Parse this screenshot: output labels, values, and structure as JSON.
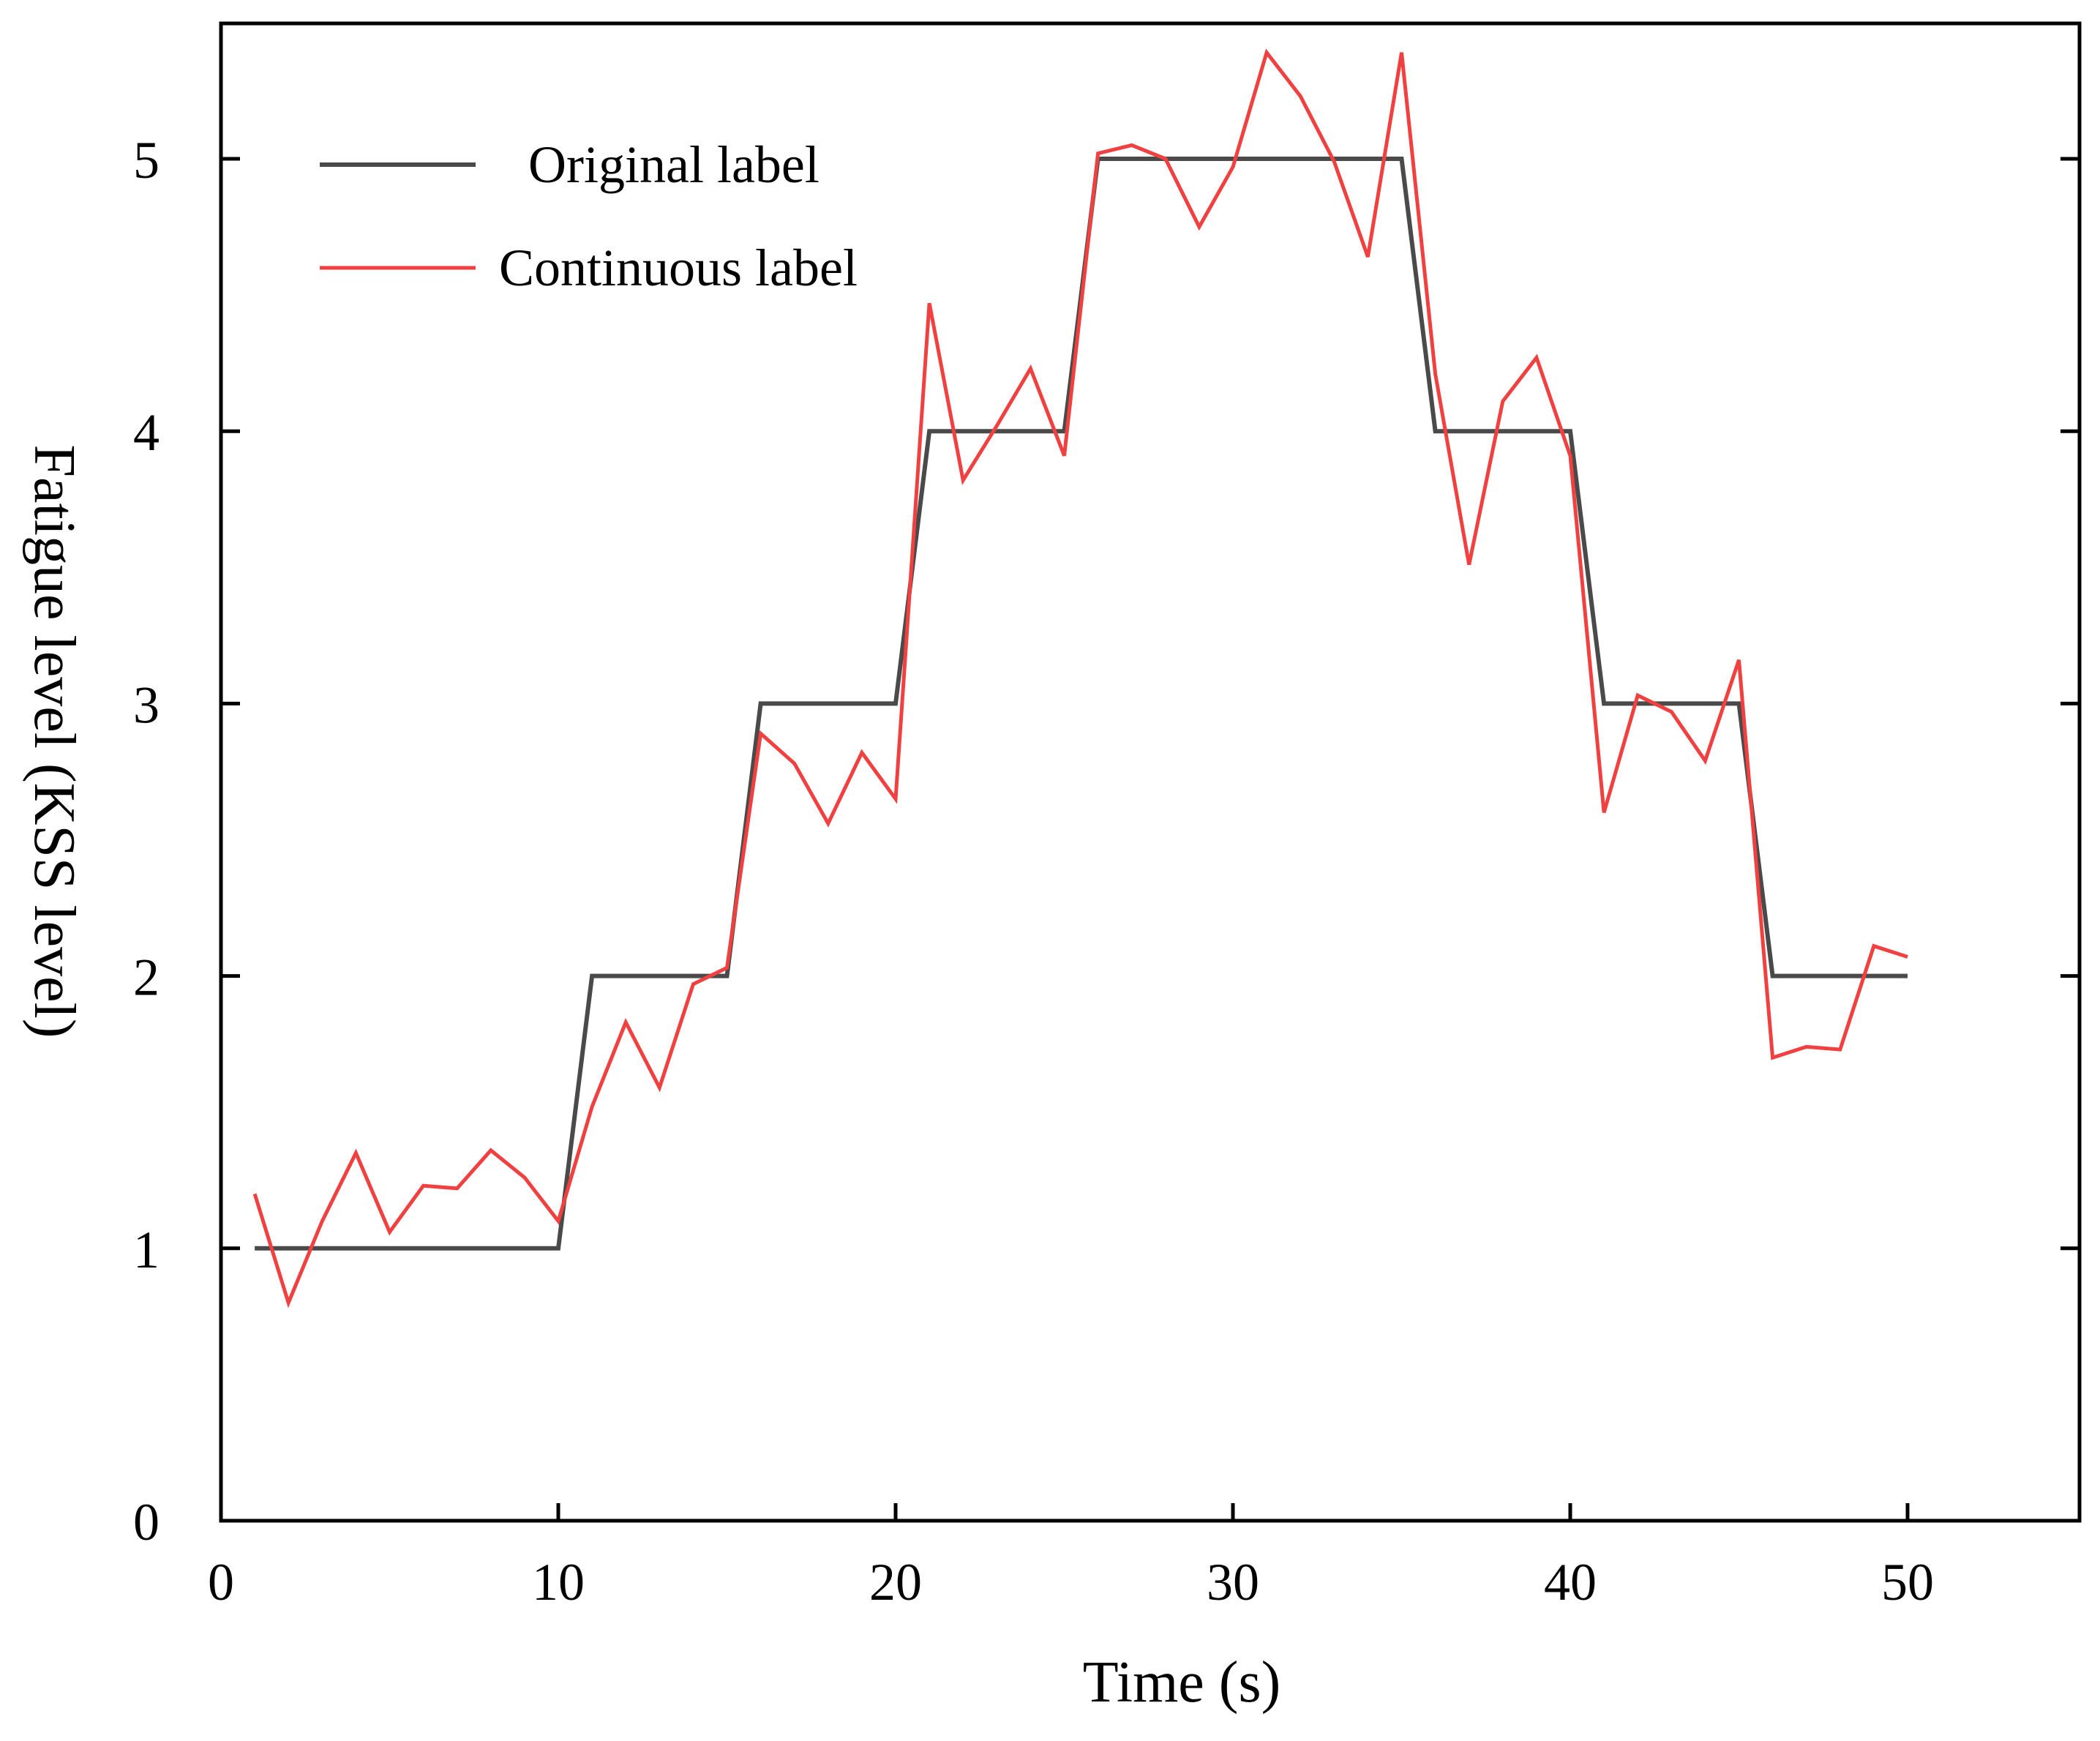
{
  "chart_data": {
    "type": "line",
    "title": "",
    "xlabel": "Time (s)",
    "ylabel": "Fatigue level (KSS level)",
    "xlim": [
      0,
      55
    ],
    "ylim": [
      0,
      5.5
    ],
    "xticks": [
      0,
      10,
      20,
      30,
      40,
      50
    ],
    "yticks": [
      0,
      1,
      2,
      3,
      4,
      5
    ],
    "grid": false,
    "legend_position": "top-left",
    "series": [
      {
        "name": "Original label",
        "color": "#4a4a4a",
        "step": true,
        "x": [
          1,
          10,
          11,
          15,
          16,
          20,
          21,
          25,
          26,
          35,
          36,
          40,
          41,
          45,
          46,
          50
        ],
        "y": [
          1,
          1,
          2,
          2,
          3,
          3,
          4,
          4,
          5,
          5,
          4,
          4,
          3,
          3,
          2,
          2
        ]
      },
      {
        "name": "Continuous label",
        "color": "#f04040",
        "x": [
          1,
          2,
          3,
          4,
          5,
          6,
          7,
          8,
          9,
          10,
          11,
          12,
          13,
          14,
          15,
          16,
          17,
          18,
          19,
          20,
          21,
          22,
          23,
          24,
          25,
          26,
          27,
          28,
          29,
          30,
          31,
          32,
          33,
          34,
          35,
          36,
          37,
          38,
          39,
          40,
          41,
          42,
          43,
          44,
          45,
          46,
          47,
          48,
          49,
          50
        ],
        "y": [
          1.2,
          0.8,
          1.1,
          1.35,
          1.06,
          1.23,
          1.22,
          1.36,
          1.26,
          1.1,
          1.52,
          1.83,
          1.59,
          1.97,
          2.03,
          2.89,
          2.78,
          2.56,
          2.82,
          2.65,
          4.47,
          3.82,
          4.02,
          4.23,
          3.91,
          5.02,
          5.05,
          5.0,
          4.75,
          4.97,
          5.39,
          5.23,
          4.99,
          4.64,
          5.39,
          4.21,
          3.51,
          4.11,
          4.27,
          3.91,
          2.6,
          3.03,
          2.97,
          2.79,
          3.16,
          1.7,
          1.74,
          1.73,
          2.11,
          2.07
        ]
      }
    ]
  }
}
